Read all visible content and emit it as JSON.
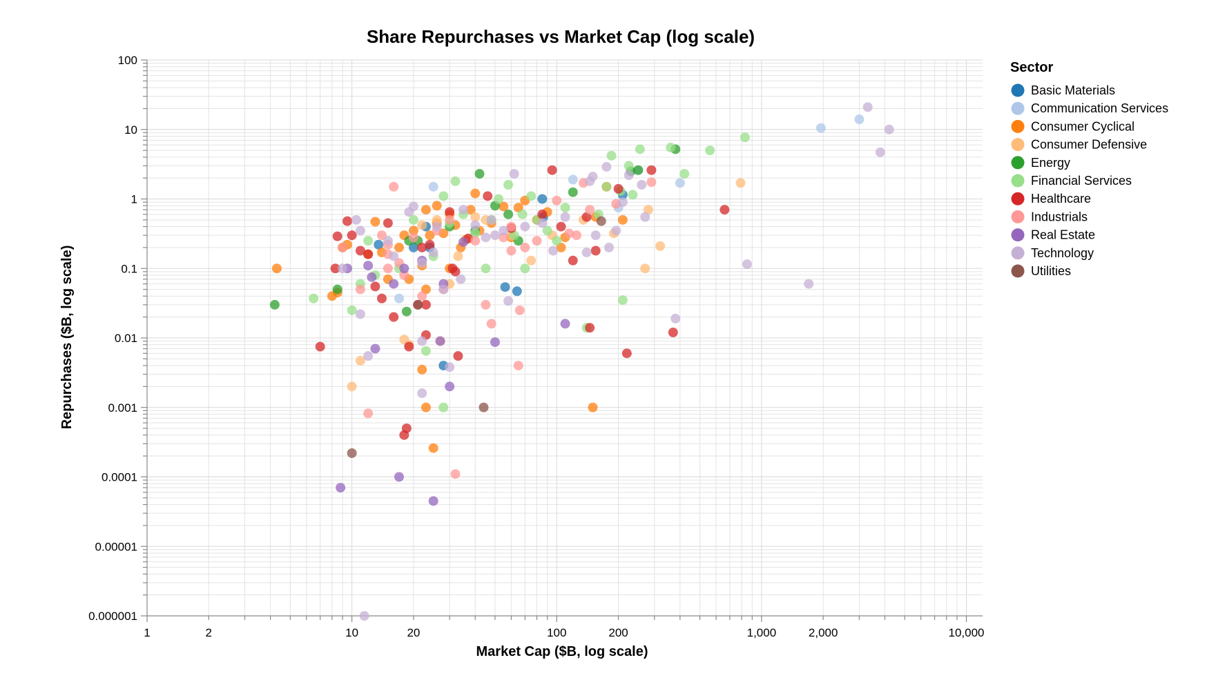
{
  "chart_data": {
    "type": "scatter",
    "title": "Share Repurchases vs Market Cap (log scale)",
    "xlabel": "Market Cap ($B, log scale)",
    "ylabel": "Repurchases ($B, log scale)",
    "xscale": "log",
    "yscale": "log",
    "xlim": [
      1,
      12000
    ],
    "ylim": [
      1e-06,
      100
    ],
    "grid": true,
    "legend": {
      "title": "Sector",
      "position": "right"
    },
    "x_ticks": [
      {
        "value": 1,
        "label": "1"
      },
      {
        "value": 2,
        "label": "2"
      },
      {
        "value": 10,
        "label": "10"
      },
      {
        "value": 20,
        "label": "20"
      },
      {
        "value": 100,
        "label": "100"
      },
      {
        "value": 200,
        "label": "200"
      },
      {
        "value": 1000,
        "label": "1,000"
      },
      {
        "value": 2000,
        "label": "2,000"
      },
      {
        "value": 10000,
        "label": "10,000"
      }
    ],
    "y_ticks": [
      {
        "value": 100,
        "label": "100"
      },
      {
        "value": 10,
        "label": "10"
      },
      {
        "value": 1,
        "label": "1"
      },
      {
        "value": 0.1,
        "label": "0.1"
      },
      {
        "value": 0.01,
        "label": "0.01"
      },
      {
        "value": 0.001,
        "label": "0.001"
      },
      {
        "value": 0.0001,
        "label": "0.0001"
      },
      {
        "value": 1e-05,
        "label": "0.00001"
      },
      {
        "value": 1e-06,
        "label": "0.000001"
      }
    ],
    "series": [
      {
        "name": "Basic Materials",
        "color": "#1f77b4",
        "points": [
          [
            13.5,
            0.22
          ],
          [
            23,
            0.4
          ],
          [
            24,
            0.2
          ],
          [
            20,
            0.2
          ],
          [
            28,
            0.004
          ],
          [
            56,
            0.054
          ],
          [
            64,
            0.047
          ],
          [
            85,
            1.0
          ],
          [
            86,
            0.55
          ],
          [
            210,
            1.15
          ]
        ]
      },
      {
        "name": "Communication Services",
        "color": "#aec7e8",
        "points": [
          [
            17,
            0.037
          ],
          [
            25,
            1.5
          ],
          [
            120,
            1.9
          ],
          [
            200,
            0.75
          ],
          [
            250,
            2.6
          ],
          [
            400,
            1.7
          ],
          [
            1950,
            10.5
          ],
          [
            3000,
            14
          ]
        ]
      },
      {
        "name": "Consumer Cyclical",
        "color": "#ff7f0e",
        "points": [
          [
            4.3,
            0.1
          ],
          [
            8,
            0.04
          ],
          [
            8.5,
            0.045
          ],
          [
            9,
            0.2
          ],
          [
            9.5,
            0.22
          ],
          [
            12,
            0.16
          ],
          [
            13,
            0.47
          ],
          [
            14,
            0.17
          ],
          [
            15,
            0.07
          ],
          [
            17,
            0.2
          ],
          [
            18,
            0.3
          ],
          [
            19,
            0.07
          ],
          [
            20,
            0.35
          ],
          [
            22,
            0.11
          ],
          [
            22,
            0.0035
          ],
          [
            23,
            0.05
          ],
          [
            23,
            0.001
          ],
          [
            24,
            0.3
          ],
          [
            25,
            0.00026
          ],
          [
            26,
            0.45
          ],
          [
            26,
            0.8
          ],
          [
            28,
            0.32
          ],
          [
            30,
            0.6
          ],
          [
            30,
            0.1
          ],
          [
            32,
            0.42
          ],
          [
            34,
            0.2
          ],
          [
            36,
            0.26
          ],
          [
            40,
            1.2
          ],
          [
            42,
            0.35
          ],
          [
            48,
            0.45
          ],
          [
            55,
            0.78
          ],
          [
            60,
            0.28
          ],
          [
            65,
            0.75
          ],
          [
            70,
            0.95
          ],
          [
            80,
            0.5
          ],
          [
            90,
            0.65
          ],
          [
            105,
            0.2
          ],
          [
            110,
            0.28
          ],
          [
            150,
            0.001
          ],
          [
            155,
            0.55
          ],
          [
            175,
            1.5
          ],
          [
            210,
            0.5
          ],
          [
            23,
            0.7
          ],
          [
            38,
            0.7
          ]
        ]
      },
      {
        "name": "Consumer Defensive",
        "color": "#ffbb78",
        "points": [
          [
            10,
            0.002
          ],
          [
            11,
            0.0047
          ],
          [
            18,
            0.0095
          ],
          [
            19,
            0.008
          ],
          [
            26,
            0.5
          ],
          [
            27,
            0.009
          ],
          [
            30,
            0.06
          ],
          [
            40,
            0.55
          ],
          [
            60,
            0.3
          ],
          [
            75,
            0.13
          ],
          [
            95,
            0.3
          ],
          [
            135,
            0.5
          ],
          [
            190,
            0.32
          ],
          [
            270,
            0.1
          ],
          [
            280,
            0.7
          ],
          [
            320,
            0.21
          ],
          [
            790,
            1.7
          ],
          [
            22,
            0.42
          ],
          [
            45,
            0.5
          ],
          [
            33,
            0.15
          ]
        ]
      },
      {
        "name": "Energy",
        "color": "#2ca02c",
        "points": [
          [
            4.2,
            0.03
          ],
          [
            8.5,
            0.05
          ],
          [
            19,
            0.25
          ],
          [
            21,
            0.25
          ],
          [
            18.5,
            0.024
          ],
          [
            30,
            0.4
          ],
          [
            40,
            0.35
          ],
          [
            42,
            2.3
          ],
          [
            50,
            0.8
          ],
          [
            58,
            0.6
          ],
          [
            65,
            0.25
          ],
          [
            120,
            1.25
          ],
          [
            230,
            2.5
          ],
          [
            250,
            2.6
          ],
          [
            380,
            5.2
          ]
        ]
      },
      {
        "name": "Financial Services",
        "color": "#98df8a",
        "points": [
          [
            6.5,
            0.037
          ],
          [
            10,
            0.025
          ],
          [
            11,
            0.06
          ],
          [
            12,
            0.25
          ],
          [
            13,
            0.08
          ],
          [
            17,
            0.1
          ],
          [
            20,
            0.5
          ],
          [
            23,
            0.0065
          ],
          [
            25,
            0.15
          ],
          [
            28,
            1.1
          ],
          [
            28,
            0.001
          ],
          [
            30,
            0.45
          ],
          [
            32,
            1.8
          ],
          [
            35,
            0.6
          ],
          [
            45,
            0.1
          ],
          [
            48,
            0.5
          ],
          [
            52,
            1.0
          ],
          [
            58,
            1.6
          ],
          [
            62,
            0.3
          ],
          [
            70,
            0.1
          ],
          [
            75,
            1.1
          ],
          [
            80,
            0.5
          ],
          [
            90,
            0.35
          ],
          [
            100,
            0.25
          ],
          [
            110,
            0.75
          ],
          [
            140,
            0.014
          ],
          [
            160,
            0.6
          ],
          [
            175,
            1.5
          ],
          [
            185,
            4.2
          ],
          [
            205,
            1.3
          ],
          [
            210,
            0.035
          ],
          [
            225,
            3.0
          ],
          [
            235,
            1.15
          ],
          [
            255,
            5.2
          ],
          [
            360,
            5.5
          ],
          [
            420,
            2.3
          ],
          [
            560,
            5.0
          ],
          [
            830,
            7.7
          ],
          [
            40,
            0.32
          ],
          [
            68,
            0.6
          ]
        ]
      },
      {
        "name": "Healthcare",
        "color": "#d62728",
        "points": [
          [
            7,
            0.0075
          ],
          [
            8.3,
            0.1
          ],
          [
            8.5,
            0.29
          ],
          [
            9.5,
            0.48
          ],
          [
            10,
            0.3
          ],
          [
            11,
            0.18
          ],
          [
            12,
            0.16
          ],
          [
            13,
            0.055
          ],
          [
            14,
            0.037
          ],
          [
            15,
            0.45
          ],
          [
            16,
            0.02
          ],
          [
            18,
            0.0004
          ],
          [
            18.5,
            0.0005
          ],
          [
            19,
            0.0075
          ],
          [
            21,
            0.03
          ],
          [
            22,
            0.2
          ],
          [
            23,
            0.011
          ],
          [
            23,
            0.03
          ],
          [
            24,
            0.22
          ],
          [
            30,
            0.65
          ],
          [
            31,
            0.1
          ],
          [
            32,
            0.09
          ],
          [
            33,
            0.0055
          ],
          [
            37,
            0.27
          ],
          [
            46,
            1.1
          ],
          [
            60,
            0.38
          ],
          [
            95,
            2.6
          ],
          [
            105,
            0.4
          ],
          [
            120,
            0.13
          ],
          [
            140,
            0.55
          ],
          [
            145,
            0.014
          ],
          [
            155,
            0.18
          ],
          [
            200,
            1.4
          ],
          [
            220,
            0.006
          ],
          [
            290,
            2.6
          ],
          [
            370,
            0.012
          ],
          [
            660,
            0.7
          ],
          [
            85,
            0.6
          ]
        ]
      },
      {
        "name": "Industrials",
        "color": "#ff9896",
        "points": [
          [
            9,
            0.2
          ],
          [
            11,
            0.05
          ],
          [
            12,
            0.00082
          ],
          [
            14,
            0.3
          ],
          [
            15,
            0.22
          ],
          [
            15,
            0.1
          ],
          [
            16,
            1.5
          ],
          [
            17,
            0.12
          ],
          [
            18,
            0.08
          ],
          [
            20,
            0.28
          ],
          [
            22,
            0.04
          ],
          [
            26,
            0.35
          ],
          [
            28,
            0.05
          ],
          [
            30,
            0.5
          ],
          [
            32,
            0.00011
          ],
          [
            40,
            0.25
          ],
          [
            45,
            0.03
          ],
          [
            48,
            0.016
          ],
          [
            55,
            0.28
          ],
          [
            60,
            0.4
          ],
          [
            65,
            0.004
          ],
          [
            66,
            0.025
          ],
          [
            70,
            0.2
          ],
          [
            80,
            0.25
          ],
          [
            100,
            0.95
          ],
          [
            115,
            0.32
          ],
          [
            125,
            0.3
          ],
          [
            135,
            1.7
          ],
          [
            145,
            0.7
          ],
          [
            195,
            0.85
          ],
          [
            290,
            1.75
          ],
          [
            60,
            0.18
          ],
          [
            15,
            0.16
          ]
        ]
      },
      {
        "name": "Real Estate",
        "color": "#9467bd",
        "points": [
          [
            8.8,
            7e-05
          ],
          [
            9.5,
            0.1
          ],
          [
            12,
            0.11
          ],
          [
            12.5,
            0.075
          ],
          [
            13,
            0.007
          ],
          [
            16,
            0.06
          ],
          [
            17,
            0.0001
          ],
          [
            18,
            0.1
          ],
          [
            22,
            0.13
          ],
          [
            25,
            4.5e-05
          ],
          [
            27,
            0.009
          ],
          [
            28,
            0.06
          ],
          [
            30,
            0.002
          ],
          [
            35,
            0.24
          ],
          [
            50,
            0.0087
          ],
          [
            110,
            0.016
          ]
        ]
      },
      {
        "name": "Technology",
        "color": "#c5b0d5",
        "points": [
          [
            9,
            0.1
          ],
          [
            10.5,
            0.5
          ],
          [
            11,
            0.35
          ],
          [
            11,
            0.022
          ],
          [
            11.5,
            1e-06
          ],
          [
            12,
            0.0055
          ],
          [
            15,
            0.25
          ],
          [
            16,
            0.15
          ],
          [
            19,
            0.65
          ],
          [
            20,
            0.78
          ],
          [
            22,
            0.12
          ],
          [
            22,
            0.0016
          ],
          [
            22,
            0.009
          ],
          [
            25,
            0.17
          ],
          [
            28,
            0.05
          ],
          [
            30,
            0.0038
          ],
          [
            34,
            0.07
          ],
          [
            35,
            0.7
          ],
          [
            40,
            0.42
          ],
          [
            45,
            0.28
          ],
          [
            50,
            0.3
          ],
          [
            55,
            0.35
          ],
          [
            58,
            0.034
          ],
          [
            62,
            2.3
          ],
          [
            70,
            0.4
          ],
          [
            85,
            0.45
          ],
          [
            96,
            0.18
          ],
          [
            110,
            0.55
          ],
          [
            140,
            0.17
          ],
          [
            145,
            1.8
          ],
          [
            150,
            2.1
          ],
          [
            155,
            0.3
          ],
          [
            175,
            2.9
          ],
          [
            180,
            0.2
          ],
          [
            195,
            0.35
          ],
          [
            210,
            0.9
          ],
          [
            225,
            2.2
          ],
          [
            260,
            1.6
          ],
          [
            270,
            0.55
          ],
          [
            380,
            0.019
          ],
          [
            850,
            0.115
          ],
          [
            1700,
            0.06
          ],
          [
            3300,
            21
          ],
          [
            3800,
            4.7
          ],
          [
            4200,
            10
          ],
          [
            26,
            0.4
          ],
          [
            48,
            0.5
          ]
        ]
      },
      {
        "name": "Utilities",
        "color": "#8c564b",
        "points": [
          [
            10,
            0.00022
          ],
          [
            21,
            0.03
          ],
          [
            44,
            0.001
          ],
          [
            165,
            0.48
          ]
        ]
      }
    ]
  }
}
